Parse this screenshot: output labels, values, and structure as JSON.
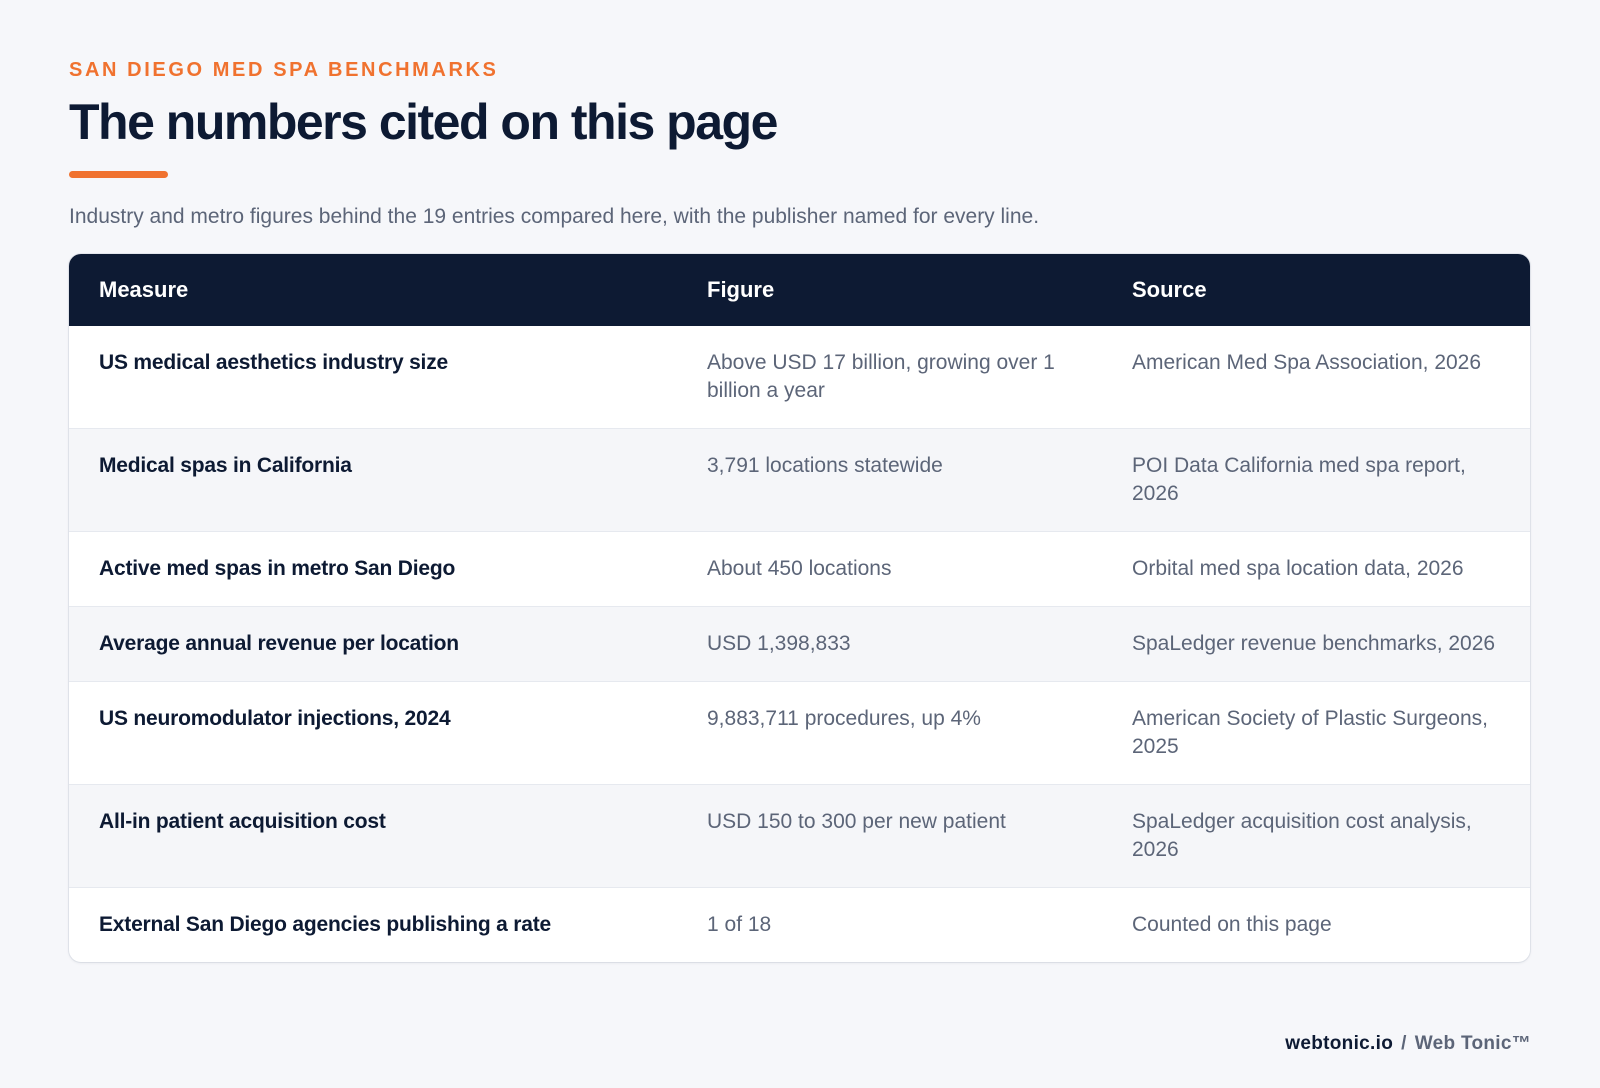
{
  "header": {
    "eyebrow": "SAN DIEGO MED SPA BENCHMARKS",
    "title": "The numbers cited on this page",
    "subtitle": "Industry and metro figures behind the 19 entries compared here, with the publisher named for every line."
  },
  "table": {
    "columns": [
      "Measure",
      "Figure",
      "Source"
    ],
    "rows": [
      {
        "measure": "US medical aesthetics industry size",
        "figure": "Above USD 17 billion, growing over 1 billion a year",
        "source": "American Med Spa Association, 2026"
      },
      {
        "measure": "Medical spas in California",
        "figure": "3,791 locations statewide",
        "source": "POI Data California med spa report, 2026"
      },
      {
        "measure": "Active med spas in metro San Diego",
        "figure": "About 450 locations",
        "source": "Orbital med spa location data, 2026"
      },
      {
        "measure": "Average annual revenue per location",
        "figure": "USD 1,398,833",
        "source": "SpaLedger revenue benchmarks, 2026"
      },
      {
        "measure": "US neuromodulator injections, 2024",
        "figure": "9,883,711 procedures, up 4%",
        "source": "American Society of Plastic Surgeons, 2025"
      },
      {
        "measure": "All-in patient acquisition cost",
        "figure": "USD 150 to 300 per new patient",
        "source": "SpaLedger acquisition cost analysis, 2026"
      },
      {
        "measure": "External San Diego agencies publishing a rate",
        "figure": "1 of 18",
        "source": "Counted on this page"
      }
    ]
  },
  "footer": {
    "domain": "webtonic.io",
    "separator": "/",
    "brand": "Web Tonic™"
  },
  "colors": {
    "accent": "#f0722f",
    "navy": "#0d1a33",
    "muted": "#5c6578",
    "background": "#f6f7fa"
  }
}
